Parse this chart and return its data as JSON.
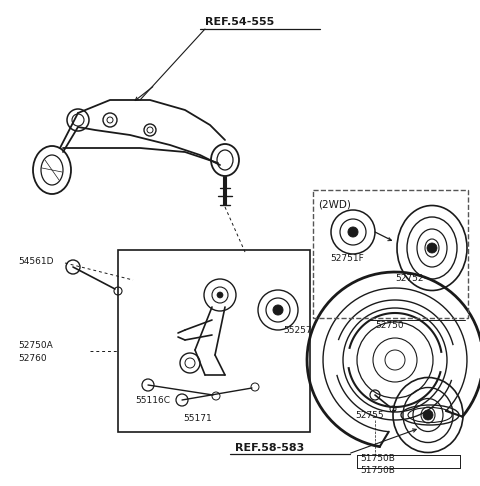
{
  "bg_color": "#ffffff",
  "line_color": "#1a1a1a",
  "labels": {
    "ref54555": "REF.54-555",
    "ref58583": "REF.58-583",
    "part54561D": "54561D",
    "part52750A": "52750A",
    "part52760": "52760",
    "part55257": "55257",
    "part55116C": "55116C",
    "part55171": "55171",
    "part2wd": "(2WD)",
    "part52751F": "52751F",
    "part52752": "52752",
    "part52750": "52750",
    "part52755": "52755",
    "part51750B1": "51750B",
    "part51750B2": "51750B"
  }
}
